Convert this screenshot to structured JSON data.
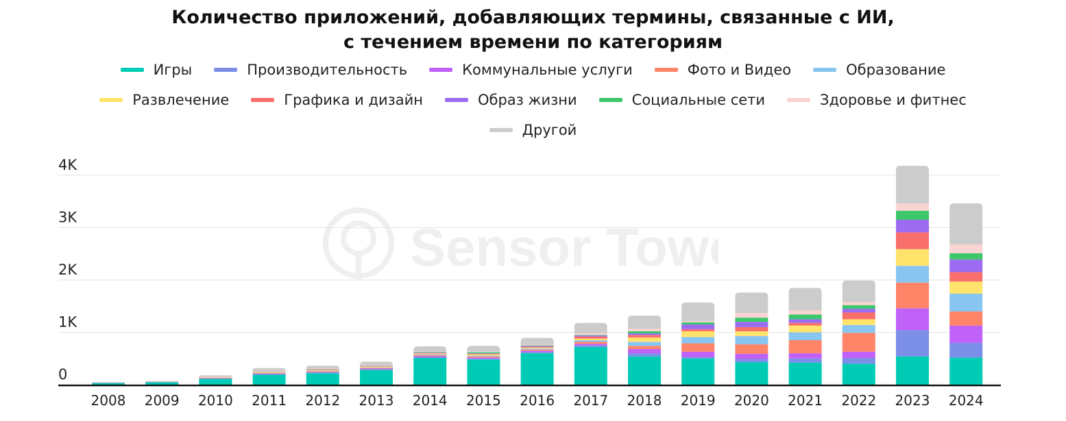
{
  "title_line1": "Количество приложений, добавляющих термины, связанные с ИИ,",
  "title_line2": "с течением времени по категориям",
  "watermark_text": "Sensor Tower",
  "chart_data": {
    "type": "bar",
    "stacked": true,
    "title": "Количество приложений, добавляющих термины, связанные с ИИ, с течением времени по категориям",
    "categories": [
      "2008",
      "2009",
      "2010",
      "2011",
      "2012",
      "2013",
      "2014",
      "2015",
      "2016",
      "2017",
      "2018",
      "2019",
      "2020",
      "2021",
      "2022",
      "2023",
      "2024"
    ],
    "y_ticks": [
      {
        "value": 0,
        "label": "0"
      },
      {
        "value": 1000,
        "label": "1K"
      },
      {
        "value": 2000,
        "label": "2K"
      },
      {
        "value": 3000,
        "label": "3K"
      },
      {
        "value": 4000,
        "label": "4K"
      }
    ],
    "ylim": [
      0,
      4000
    ],
    "grid": true,
    "legend_position": "top",
    "series": [
      {
        "name": "Игры",
        "color": "#00CCB6",
        "values": [
          30,
          45,
          110,
          190,
          220,
          280,
          510,
          480,
          600,
          720,
          540,
          500,
          430,
          420,
          400,
          540,
          520
        ]
      },
      {
        "name": "Производительность",
        "color": "#7B8FE8",
        "values": [
          3,
          4,
          8,
          12,
          12,
          15,
          20,
          20,
          25,
          30,
          60,
          30,
          60,
          80,
          110,
          500,
          280
        ]
      },
      {
        "name": "Коммунальные услуги",
        "color": "#C061F8",
        "values": [
          2,
          3,
          6,
          10,
          12,
          12,
          18,
          20,
          25,
          30,
          80,
          100,
          100,
          100,
          120,
          420,
          330
        ]
      },
      {
        "name": "Фото и Видео",
        "color": "#FF8468",
        "values": [
          2,
          2,
          6,
          10,
          12,
          12,
          18,
          20,
          20,
          40,
          60,
          160,
          180,
          250,
          360,
          490,
          270
        ]
      },
      {
        "name": "Образование",
        "color": "#88C5F1",
        "values": [
          2,
          2,
          5,
          8,
          10,
          10,
          15,
          15,
          20,
          30,
          80,
          120,
          160,
          150,
          150,
          320,
          340
        ]
      },
      {
        "name": "Развлечение",
        "color": "#FFE36A",
        "values": [
          1,
          2,
          10,
          15,
          15,
          15,
          15,
          25,
          20,
          30,
          80,
          110,
          90,
          130,
          110,
          320,
          230
        ]
      },
      {
        "name": "Графика и дизайн",
        "color": "#F96F6C",
        "values": [
          1,
          1,
          3,
          5,
          8,
          8,
          10,
          10,
          15,
          40,
          50,
          40,
          80,
          50,
          130,
          320,
          180
        ]
      },
      {
        "name": "Образ жизни",
        "color": "#9B6CF1",
        "values": [
          1,
          1,
          2,
          4,
          6,
          6,
          8,
          10,
          15,
          20,
          30,
          90,
          100,
          70,
          70,
          240,
          240
        ]
      },
      {
        "name": "Социальные сети",
        "color": "#3DC76C",
        "values": [
          1,
          1,
          2,
          3,
          5,
          5,
          8,
          20,
          10,
          10,
          40,
          40,
          80,
          90,
          70,
          170,
          120
        ]
      },
      {
        "name": "Здоровье и фитнес",
        "color": "#FAD4D1",
        "values": [
          1,
          1,
          8,
          10,
          12,
          12,
          12,
          12,
          15,
          30,
          50,
          20,
          90,
          80,
          60,
          140,
          170
        ]
      },
      {
        "name": "Другой",
        "color": "#CCCCCC",
        "values": [
          6,
          8,
          20,
          50,
          50,
          65,
          100,
          110,
          130,
          200,
          250,
          360,
          390,
          430,
          410,
          720,
          780
        ]
      }
    ]
  }
}
